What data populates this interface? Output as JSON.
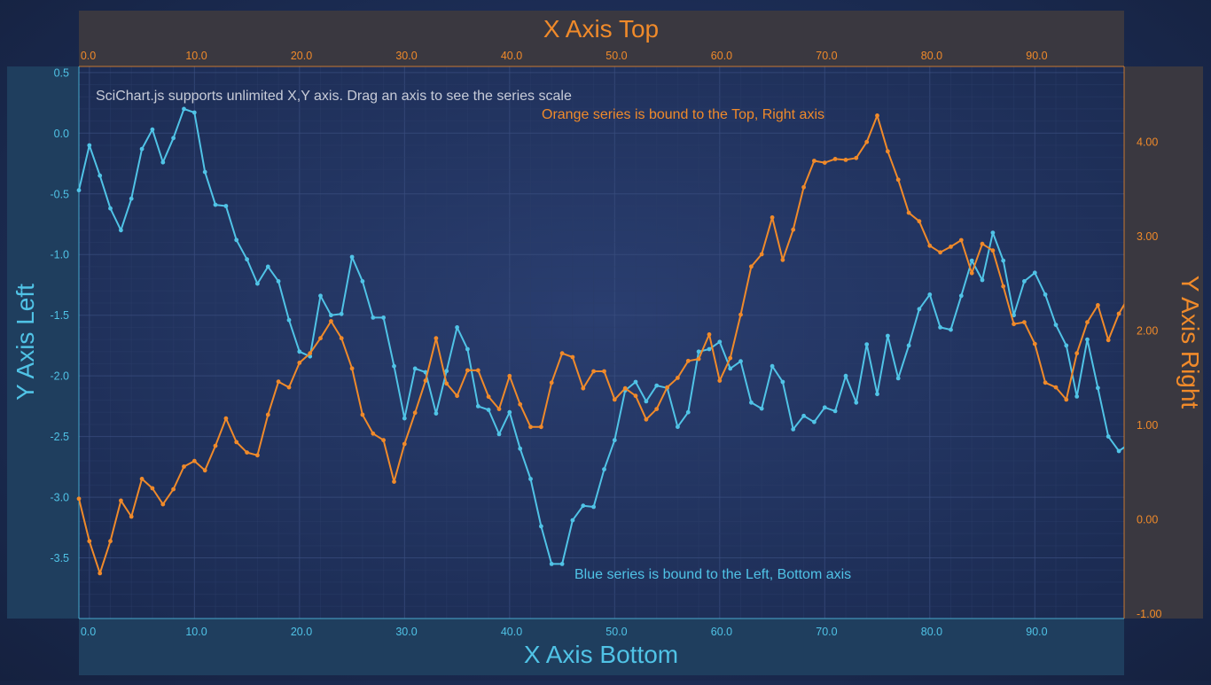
{
  "chart_data": {
    "type": "line",
    "annotations": {
      "top": "SciChart.js supports unlimited X,Y axis. Drag an axis to see the series scale",
      "orange": "Orange series is bound to the Top, Right axis",
      "blue": "Blue series is bound to the Left, Bottom axis"
    },
    "axes": {
      "x_top": {
        "title": "X Axis Top",
        "range": [
          -1.0,
          98.5
        ],
        "ticks": [
          "0.0",
          "10.0",
          "20.0",
          "30.0",
          "40.0",
          "50.0",
          "60.0",
          "70.0",
          "80.0",
          "90.0"
        ],
        "color": "#f08a2a"
      },
      "x_bottom": {
        "title": "X Axis Bottom",
        "range": [
          -1.0,
          98.5
        ],
        "ticks": [
          "0.0",
          "10.0",
          "20.0",
          "30.0",
          "40.0",
          "50.0",
          "60.0",
          "70.0",
          "80.0",
          "90.0"
        ],
        "color": "#50c3e6"
      },
      "y_left": {
        "title": "Y Axis Left",
        "range": [
          -4.0,
          0.55
        ],
        "ticks": [
          "0.5",
          "0.0",
          "-0.5",
          "-1.0",
          "-1.5",
          "-2.0",
          "-2.5",
          "-3.0",
          "-3.5"
        ],
        "color": "#50c3e6"
      },
      "y_right": {
        "title": "Y Axis Right",
        "range": [
          -1.05,
          4.8
        ],
        "ticks": [
          "4.00",
          "3.00",
          "2.00",
          "1.00",
          "0.00",
          "-1.00"
        ],
        "color": "#f08a2a"
      }
    },
    "grid": true,
    "series": [
      {
        "color": "#50c3e6",
        "x_axis": "x_bottom",
        "y_axis": "y_left",
        "x": [
          -1,
          0,
          1,
          2,
          3,
          4,
          5,
          6,
          7,
          8,
          9,
          10,
          11,
          12,
          13,
          14,
          15,
          16,
          17,
          18,
          19,
          20,
          21,
          22,
          23,
          24,
          25,
          26,
          27,
          28,
          29,
          30,
          31,
          32,
          33,
          34,
          35,
          36,
          37,
          38,
          39,
          40,
          41,
          42,
          43,
          44,
          45,
          46,
          47,
          48,
          49,
          50,
          51,
          52,
          53,
          54,
          55,
          56,
          57,
          58,
          59,
          60,
          61,
          62,
          63,
          64,
          65,
          66,
          67,
          68,
          69,
          70,
          71,
          72,
          73,
          74,
          75,
          76,
          77,
          78,
          79,
          80,
          81,
          82,
          83,
          84,
          85,
          86,
          87,
          88,
          89,
          90,
          91,
          92,
          93,
          94,
          95,
          96,
          97,
          98,
          99
        ],
        "y": [
          -0.47,
          -0.1,
          -0.35,
          -0.62,
          -0.8,
          -0.54,
          -0.13,
          0.03,
          -0.24,
          -0.04,
          0.2,
          0.17,
          -0.32,
          -0.59,
          -0.6,
          -0.88,
          -1.04,
          -1.24,
          -1.1,
          -1.22,
          -1.54,
          -1.8,
          -1.84,
          -1.34,
          -1.5,
          -1.49,
          -1.02,
          -1.22,
          -1.52,
          -1.52,
          -1.92,
          -2.35,
          -1.94,
          -1.97,
          -2.31,
          -1.96,
          -1.6,
          -1.78,
          -2.25,
          -2.28,
          -2.48,
          -2.3,
          -2.6,
          -2.85,
          -3.24,
          -3.55,
          -3.55,
          -3.19,
          -3.07,
          -3.08,
          -2.77,
          -2.53,
          -2.12,
          -2.05,
          -2.21,
          -2.08,
          -2.1,
          -2.42,
          -2.3,
          -1.8,
          -1.78,
          -1.72,
          -1.94,
          -1.88,
          -2.22,
          -2.27,
          -1.92,
          -2.05,
          -2.44,
          -2.33,
          -2.38,
          -2.26,
          -2.29,
          -2.0,
          -2.22,
          -1.74,
          -2.15,
          -1.67,
          -2.02,
          -1.75,
          -1.45,
          -1.33,
          -1.6,
          -1.62,
          -1.34,
          -1.05,
          -1.21,
          -0.82,
          -1.05,
          -1.5,
          -1.22,
          -1.15,
          -1.33,
          -1.58,
          -1.75,
          -2.17,
          -1.7,
          -2.1,
          -2.5,
          -2.62,
          -2.56
        ]
      },
      {
        "color": "#f08a2a",
        "x_axis": "x_top",
        "y_axis": "y_right",
        "x": [
          -1,
          0,
          1,
          2,
          3,
          4,
          5,
          6,
          7,
          8,
          9,
          10,
          11,
          12,
          13,
          14,
          15,
          16,
          17,
          18,
          19,
          20,
          21,
          22,
          23,
          24,
          25,
          26,
          27,
          28,
          29,
          30,
          31,
          32,
          33,
          34,
          35,
          36,
          37,
          38,
          39,
          40,
          41,
          42,
          43,
          44,
          45,
          46,
          47,
          48,
          49,
          50,
          51,
          52,
          53,
          54,
          55,
          56,
          57,
          58,
          59,
          60,
          61,
          62,
          63,
          64,
          65,
          66,
          67,
          68,
          69,
          70,
          71,
          72,
          73,
          74,
          75,
          76,
          77,
          78,
          79,
          80,
          81,
          82,
          83,
          84,
          85,
          86,
          87,
          88,
          89,
          90,
          91,
          92,
          93,
          94,
          95,
          96,
          97,
          98,
          99
        ],
        "y": [
          0.22,
          -0.23,
          -0.57,
          -0.23,
          0.2,
          0.03,
          0.43,
          0.33,
          0.16,
          0.32,
          0.56,
          0.62,
          0.52,
          0.78,
          1.07,
          0.82,
          0.71,
          0.68,
          1.11,
          1.46,
          1.4,
          1.66,
          1.76,
          1.92,
          2.1,
          1.92,
          1.6,
          1.11,
          0.91,
          0.84,
          0.4,
          0.8,
          1.13,
          1.47,
          1.92,
          1.44,
          1.31,
          1.58,
          1.58,
          1.3,
          1.17,
          1.52,
          1.22,
          0.98,
          0.98,
          1.45,
          1.76,
          1.72,
          1.39,
          1.57,
          1.57,
          1.27,
          1.39,
          1.31,
          1.06,
          1.17,
          1.4,
          1.5,
          1.68,
          1.7,
          1.96,
          1.47,
          1.71,
          2.17,
          2.68,
          2.81,
          3.2,
          2.75,
          3.07,
          3.52,
          3.8,
          3.78,
          3.82,
          3.81,
          3.83,
          4.0,
          4.28,
          3.9,
          3.6,
          3.25,
          3.16,
          2.9,
          2.83,
          2.89,
          2.96,
          2.61,
          2.92,
          2.85,
          2.47,
          2.07,
          2.09,
          1.86,
          1.45,
          1.4,
          1.27,
          1.76,
          2.09,
          2.27,
          1.9,
          2.18,
          2.37
        ]
      }
    ]
  }
}
